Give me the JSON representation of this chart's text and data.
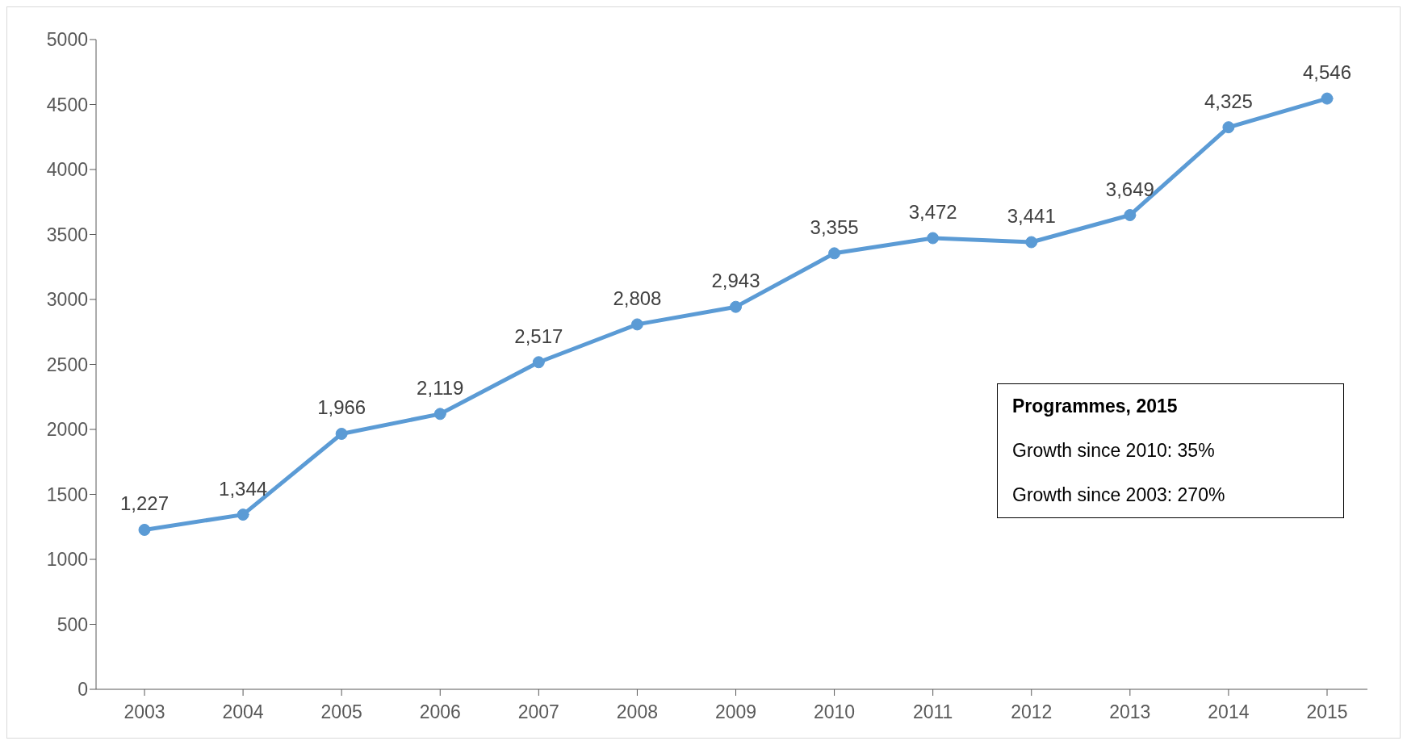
{
  "chart_data": {
    "type": "line",
    "categories": [
      "2003",
      "2004",
      "2005",
      "2006",
      "2007",
      "2008",
      "2009",
      "2010",
      "2011",
      "2012",
      "2013",
      "2014",
      "2015"
    ],
    "series": [
      {
        "color": "#5b9bd5",
        "values": [
          1227,
          1344,
          1966,
          2119,
          2517,
          2808,
          2943,
          3355,
          3472,
          3441,
          3649,
          4325,
          4546
        ],
        "value_labels": [
          "1,227",
          "1,344",
          "1,966",
          "2,119",
          "2,517",
          "2,808",
          "2,943",
          "3,355",
          "3,472",
          "3,441",
          "3,649",
          "4,325",
          "4,546"
        ]
      }
    ],
    "ylim": [
      0,
      5000
    ],
    "yticks": [
      0,
      500,
      1000,
      1500,
      2000,
      2500,
      3000,
      3500,
      4000,
      4500,
      5000
    ],
    "grid": false,
    "legend": false,
    "marker": "circle",
    "line_style": "solid",
    "annotations": [
      "Programmes, 2015",
      "Growth since 2010: 35%",
      "Growth since 2003: 270%"
    ]
  }
}
